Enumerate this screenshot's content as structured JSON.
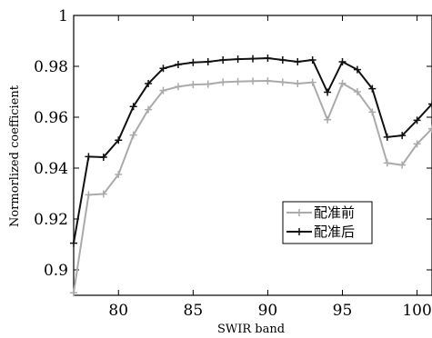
{
  "chart_data": {
    "type": "line",
    "title": "",
    "xlabel": "SWIR band",
    "ylabel": "Normorlized coefficient",
    "xlim": [
      77,
      101
    ],
    "ylim": [
      0.89,
      1.0
    ],
    "xticks": [
      80,
      85,
      90,
      95,
      100
    ],
    "xtick_labels": [
      "80",
      "85",
      "90",
      "95",
      "100"
    ],
    "yticks": [
      0.9,
      0.92,
      0.94,
      0.96,
      0.98,
      1.0
    ],
    "ytick_labels": [
      "0.9",
      "0.92",
      "0.94",
      "0.96",
      "0.98",
      "1"
    ],
    "legend_position": "lower-right",
    "grid": false,
    "x": [
      77,
      78,
      79,
      80,
      81,
      82,
      83,
      84,
      85,
      86,
      87,
      88,
      89,
      90,
      91,
      92,
      93,
      94,
      95,
      96,
      97,
      98,
      99,
      100,
      101
    ],
    "series": [
      {
        "name": "配准前",
        "color": "#aaaaaa",
        "values": [
          0.891,
          0.9295,
          0.9298,
          0.9375,
          0.953,
          0.963,
          0.9705,
          0.972,
          0.9728,
          0.973,
          0.9738,
          0.974,
          0.9742,
          0.9743,
          0.9738,
          0.9732,
          0.9737,
          0.959,
          0.9733,
          0.97,
          0.962,
          0.942,
          0.9412,
          0.9495,
          0.9555
        ]
      },
      {
        "name": "配准后",
        "color": "#111111",
        "values": [
          0.9105,
          0.9445,
          0.9443,
          0.951,
          0.9642,
          0.9732,
          0.9792,
          0.9807,
          0.9815,
          0.9818,
          0.9825,
          0.9828,
          0.983,
          0.9832,
          0.9825,
          0.9818,
          0.9825,
          0.9698,
          0.9818,
          0.9787,
          0.9712,
          0.9522,
          0.9528,
          0.9588,
          0.9652
        ]
      }
    ]
  }
}
